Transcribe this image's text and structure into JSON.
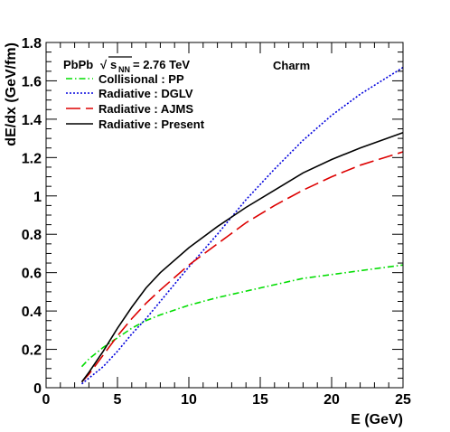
{
  "chart_data": {
    "type": "line",
    "xlabel": "E (GeV)",
    "ylabel": "dE/dx (GeV/fm)",
    "xlim": [
      0,
      25
    ],
    "ylim": [
      0,
      1.8
    ],
    "x_ticks": [
      0,
      5,
      10,
      15,
      20,
      25
    ],
    "x_tick_labels": [
      "0",
      "5",
      "10",
      "15",
      "20",
      "25"
    ],
    "y_ticks": [
      0,
      0.2,
      0.4,
      0.6,
      0.8,
      1,
      1.2,
      1.4,
      1.6,
      1.8
    ],
    "y_tick_labels": [
      "0",
      "0.2",
      "0.4",
      "0.6",
      "0.8",
      "1",
      "1.2",
      "1.4",
      "1.6",
      "1.8"
    ],
    "grid": false,
    "legend_position": "top-left",
    "annotations": {
      "system_prefix": "PbPb",
      "sqrt_symbol": "√",
      "energy_var": "s",
      "energy_sub": "NN",
      "energy_value": "= 2.76 TeV",
      "flavour": "Charm"
    },
    "series": [
      {
        "name": "Collisional : PP",
        "color": "#00dd00",
        "dash": "dash-dot",
        "x": [
          2.5,
          3,
          4,
          5,
          6,
          7,
          8,
          10,
          12,
          15,
          18,
          20,
          22,
          25
        ],
        "y": [
          0.11,
          0.15,
          0.21,
          0.26,
          0.31,
          0.35,
          0.38,
          0.43,
          0.47,
          0.52,
          0.57,
          0.59,
          0.61,
          0.64
        ]
      },
      {
        "name": "Radiative : DGLV",
        "color": "#0000dd",
        "dash": "dotted",
        "x": [
          2.5,
          3,
          4,
          5,
          6,
          7,
          8,
          10,
          12,
          14,
          16,
          18,
          20,
          22,
          25
        ],
        "y": [
          0.02,
          0.05,
          0.11,
          0.19,
          0.28,
          0.36,
          0.45,
          0.63,
          0.8,
          0.98,
          1.14,
          1.29,
          1.42,
          1.53,
          1.67
        ]
      },
      {
        "name": "Radiative : AJMS",
        "color": "#dd0000",
        "dash": "long-dash",
        "x": [
          2.5,
          3,
          4,
          5,
          6,
          7,
          8,
          10,
          12,
          14,
          16,
          18,
          20,
          22,
          25
        ],
        "y": [
          0.03,
          0.07,
          0.17,
          0.27,
          0.36,
          0.44,
          0.51,
          0.64,
          0.75,
          0.86,
          0.95,
          1.03,
          1.1,
          1.16,
          1.23
        ]
      },
      {
        "name": "Radiative : Present",
        "color": "#000000",
        "dash": "solid",
        "x": [
          2.5,
          3,
          4,
          5,
          6,
          7,
          8,
          10,
          12,
          14,
          16,
          18,
          20,
          22,
          25
        ],
        "y": [
          0.03,
          0.08,
          0.19,
          0.31,
          0.42,
          0.52,
          0.6,
          0.73,
          0.84,
          0.94,
          1.03,
          1.12,
          1.19,
          1.25,
          1.33
        ]
      }
    ]
  }
}
